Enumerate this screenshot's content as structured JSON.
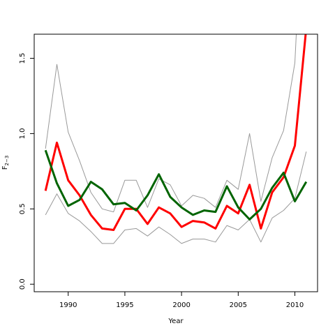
{
  "chart_data": {
    "type": "line",
    "xlabel": "Year",
    "ylabel": "F",
    "ylabel_subscript": "2−3",
    "xlim": [
      1987.0,
      2012.0
    ],
    "ylim": [
      -0.05,
      1.66
    ],
    "xticks": [
      1990,
      1995,
      2000,
      2005,
      2010
    ],
    "xtick_labels": [
      "1990",
      "1995",
      "2000",
      "2005",
      "2010"
    ],
    "yticks": [
      0.0,
      0.5,
      1.0,
      1.5
    ],
    "ytick_labels": [
      "0.0",
      "0.5",
      "1.0",
      "1.5"
    ],
    "x": [
      1988,
      1989,
      1990,
      1991,
      1992,
      1993,
      1994,
      1995,
      1996,
      1997,
      1998,
      1999,
      2000,
      2001,
      2002,
      2003,
      2004,
      2005,
      2006,
      2007,
      2008,
      2009,
      2010,
      2011
    ],
    "series": [
      {
        "color": "#ff0000",
        "width": 3,
        "values": [
          0.62,
          0.94,
          0.69,
          0.59,
          0.46,
          0.37,
          0.36,
          0.5,
          0.5,
          0.4,
          0.51,
          0.47,
          0.38,
          0.42,
          0.41,
          0.37,
          0.52,
          0.47,
          0.66,
          0.37,
          0.61,
          0.71,
          0.92,
          1.7
        ]
      },
      {
        "color": "#006400",
        "width": 3,
        "values": [
          0.89,
          0.67,
          0.52,
          0.56,
          0.68,
          0.63,
          0.53,
          0.54,
          0.49,
          0.59,
          0.73,
          0.58,
          0.51,
          0.46,
          0.49,
          0.48,
          0.65,
          0.51,
          0.43,
          0.5,
          0.64,
          0.74,
          0.55,
          0.68
        ]
      },
      {
        "color": "#999999",
        "width": 1,
        "values": [
          0.9,
          1.46,
          1.01,
          0.82,
          0.61,
          0.5,
          0.48,
          0.69,
          0.69,
          0.51,
          0.7,
          0.66,
          0.52,
          0.59,
          0.57,
          0.51,
          0.69,
          0.63,
          1.0,
          0.55,
          0.84,
          1.02,
          1.47,
          3.0
        ]
      },
      {
        "color": "#999999",
        "width": 1,
        "values": [
          0.46,
          0.6,
          0.47,
          0.42,
          0.35,
          0.27,
          0.27,
          0.36,
          0.37,
          0.32,
          0.38,
          0.33,
          0.27,
          0.3,
          0.3,
          0.28,
          0.39,
          0.36,
          0.43,
          0.28,
          0.44,
          0.49,
          0.57,
          0.88
        ]
      }
    ]
  }
}
